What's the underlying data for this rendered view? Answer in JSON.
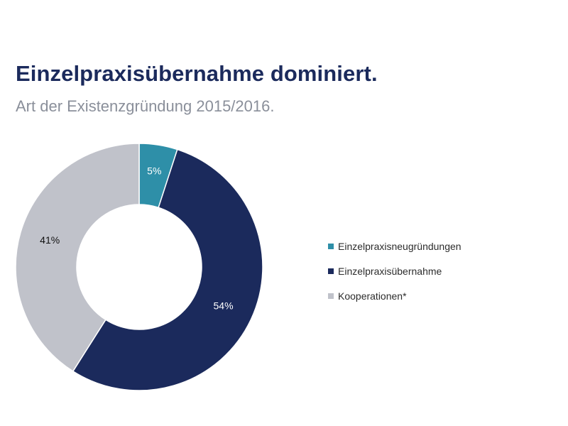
{
  "title": "Einzelpraxisübernahme dominiert.",
  "subtitle": "Art der Existenzgründung 2015/2016.",
  "chart_data": {
    "type": "pie",
    "style": "donut",
    "title": "Einzelpraxisübernahme dominiert.",
    "subtitle": "Art der Existenzgründung 2015/2016.",
    "unit": "%",
    "legend_position": "right",
    "slices": [
      {
        "name": "Einzelpraxisneugründungen",
        "value": 5,
        "label": "5%",
        "color": "#2e8fa8",
        "label_color": "#ffffff"
      },
      {
        "name": "Einzelpraxisübernahme",
        "value": 54,
        "label": "54%",
        "color": "#1b2a5c",
        "label_color": "#ffffff"
      },
      {
        "name": "Kooperationen*",
        "value": 41,
        "label": "41%",
        "color": "#c0c2ca",
        "label_color": "#111111"
      }
    ]
  }
}
